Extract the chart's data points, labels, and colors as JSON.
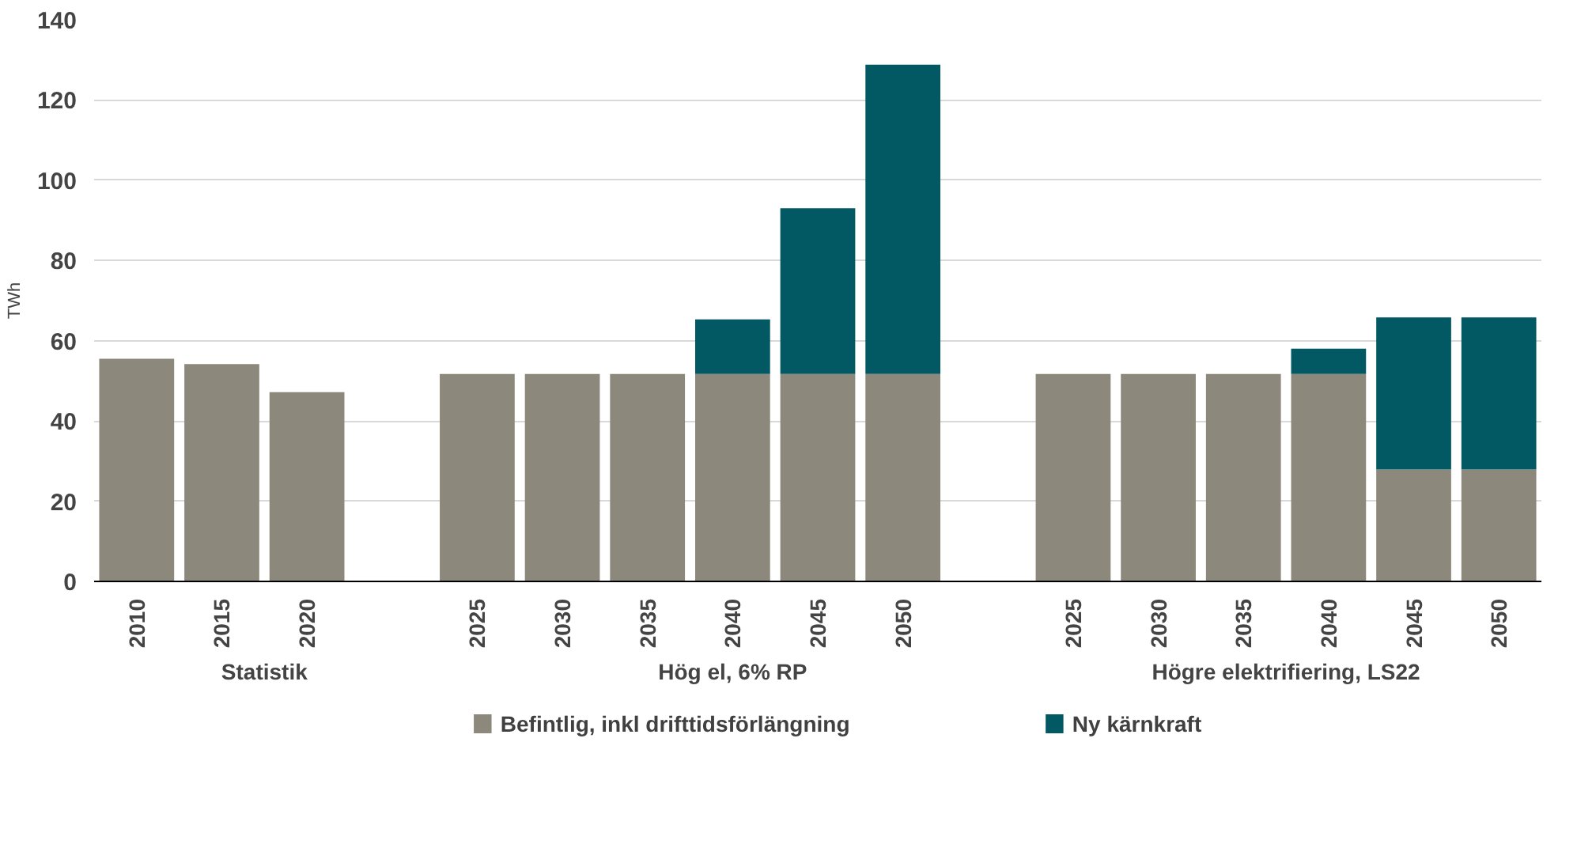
{
  "chart_data": {
    "type": "bar",
    "stacked": true,
    "ylabel": "TWh",
    "categories": [
      "2010",
      "2015",
      "2020",
      null,
      "2025",
      "2030",
      "2035",
      "2040",
      "2045",
      "2050",
      null,
      "2025",
      "2030",
      "2035",
      "2040",
      "2045",
      "2050"
    ],
    "series": [
      {
        "name": "Befintlig, inkl drifttidsförlängning",
        "color": "#8c887c",
        "values": [
          55.5,
          54.2,
          47.2,
          null,
          51.7,
          51.7,
          51.7,
          51.7,
          51.7,
          51.7,
          null,
          51.7,
          51.7,
          51.7,
          51.7,
          27.9,
          27.9
        ]
      },
      {
        "name": "Ny kärnkraft",
        "color": "#025964",
        "values": [
          null,
          null,
          null,
          null,
          null,
          null,
          null,
          13.6,
          41.3,
          77.1,
          null,
          null,
          null,
          null,
          6.3,
          37.9,
          37.9
        ]
      }
    ],
    "annotations": [
      "Statistik",
      "Hög el, 6% RP",
      "Högre elektrifiering, LS22"
    ],
    "ylim": [
      0,
      140
    ],
    "yticks": [
      0,
      20,
      40,
      60,
      80,
      100,
      120,
      140
    ],
    "grid": "y",
    "legend": "bottom"
  }
}
